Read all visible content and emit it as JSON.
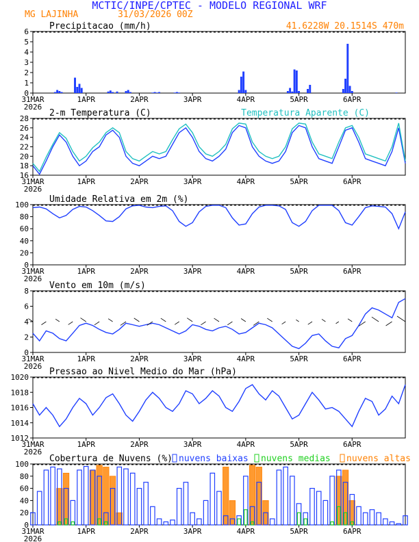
{
  "header": {
    "title": "MCTIC/INPE/CPTEC - MODELO REGIONAL WRF",
    "location": "MG LAJINHA",
    "run": "31/03/2026 00Z",
    "coords": "41.6228W 20.1514S 470m"
  },
  "colors": {
    "blue": "#1f3fff",
    "cyan": "#20c0c0",
    "orange": "#ff8000",
    "green": "#20d020",
    "header_blue": "#2020ff"
  },
  "xaxis": {
    "ticks": [
      {
        "hour": 0,
        "label": "31MAR",
        "year": "2026"
      },
      {
        "hour": 24,
        "label": "1APR"
      },
      {
        "hour": 48,
        "label": "2APR"
      },
      {
        "hour": 72,
        "label": "3APR"
      },
      {
        "hour": 96,
        "label": "4APR"
      },
      {
        "hour": 120,
        "label": "5APR"
      },
      {
        "hour": 144,
        "label": "6APR"
      }
    ],
    "max_hour": 168
  },
  "chart_data": [
    {
      "id": "precip",
      "type": "bar",
      "title": "Precipitacao (mm/h)",
      "ylim": [
        0,
        6
      ],
      "yticks": [
        "0",
        "1",
        "2",
        "3",
        "4",
        "5",
        "6"
      ],
      "color": "#1f3fff",
      "x_hours": [
        10,
        11,
        12,
        13,
        19,
        20,
        21,
        22,
        34,
        35,
        36,
        38,
        42,
        43,
        44,
        54,
        55,
        56,
        57,
        64,
        65,
        66,
        93,
        94,
        95,
        96,
        115,
        116,
        117,
        118,
        119,
        120,
        124,
        125,
        140,
        141,
        142,
        143,
        144,
        164
      ],
      "values": [
        0.1,
        0.3,
        0.2,
        0.1,
        1.5,
        0.6,
        0.9,
        0.5,
        0.15,
        0.25,
        0.1,
        0.15,
        0.2,
        0.3,
        0.1,
        0.05,
        0.1,
        0.05,
        0.1,
        0.05,
        0.1,
        0.05,
        0.3,
        1.6,
        2.1,
        0.3,
        0.2,
        0.5,
        0.15,
        2.3,
        2.2,
        0.2,
        0.4,
        0.8,
        0.4,
        1.4,
        4.8,
        0.7,
        0.2,
        0.05
      ]
    },
    {
      "id": "temp",
      "type": "line",
      "title": "2-m Temperatura (C)",
      "title2": "Temperatura Aparente (C)",
      "ylim": [
        16,
        28
      ],
      "yticks": [
        "16",
        "18",
        "20",
        "22",
        "24",
        "26",
        "28"
      ],
      "x": [
        0,
        3,
        6,
        9,
        12,
        15,
        18,
        21,
        24,
        27,
        30,
        33,
        36,
        39,
        42,
        45,
        48,
        51,
        54,
        57,
        60,
        63,
        66,
        69,
        72,
        75,
        78,
        81,
        84,
        87,
        90,
        93,
        96,
        99,
        102,
        105,
        108,
        111,
        114,
        117,
        120,
        123,
        126,
        129,
        132,
        135,
        138,
        141,
        144,
        147,
        150,
        153,
        156,
        159,
        162,
        165,
        168
      ],
      "series": [
        {
          "name": "2-m Temperatura",
          "color": "#1f3fff",
          "values": [
            18,
            16.2,
            19,
            22,
            24.5,
            23,
            20,
            18,
            19,
            21,
            22,
            24.5,
            25.5,
            24,
            20,
            18.5,
            18,
            19,
            20,
            19.5,
            20,
            22.5,
            25,
            26,
            24,
            21,
            19.5,
            19,
            20,
            21.5,
            25,
            26.5,
            26,
            22,
            20,
            19,
            18.5,
            19,
            21,
            25,
            26.5,
            26,
            22,
            19.5,
            19,
            18.5,
            22,
            25.5,
            26,
            23,
            19.5,
            19,
            18.5,
            18,
            21,
            26,
            18.5
          ]
        },
        {
          "name": "Temperatura Aparente",
          "color": "#20c0c0",
          "values": [
            18.5,
            16.8,
            19.8,
            22.5,
            25,
            23.8,
            21,
            19,
            20,
            21.8,
            23,
            25,
            26,
            25,
            21,
            19.5,
            19,
            20,
            21,
            20.5,
            21,
            23.5,
            25.8,
            26.8,
            25,
            22,
            20.5,
            20,
            21,
            22.5,
            25.8,
            27,
            26.8,
            23,
            21,
            20,
            19.5,
            20,
            22,
            25.8,
            27,
            26.8,
            23,
            20.5,
            20,
            19.5,
            23,
            26,
            26.5,
            24,
            20.5,
            20,
            19.5,
            19,
            22,
            27,
            19
          ]
        }
      ]
    },
    {
      "id": "rh",
      "type": "line",
      "title": "Umidade Relativa em 2m (%)",
      "ylim": [
        0,
        100
      ],
      "yticks": [
        "0",
        "20",
        "40",
        "60",
        "80",
        "100"
      ],
      "x": [
        0,
        3,
        6,
        9,
        12,
        15,
        18,
        21,
        24,
        27,
        30,
        33,
        36,
        39,
        42,
        45,
        48,
        51,
        54,
        57,
        60,
        63,
        66,
        69,
        72,
        75,
        78,
        81,
        84,
        87,
        90,
        93,
        96,
        99,
        102,
        105,
        108,
        111,
        114,
        117,
        120,
        123,
        126,
        129,
        132,
        135,
        138,
        141,
        144,
        147,
        150,
        153,
        156,
        159,
        162,
        165,
        168
      ],
      "series": [
        {
          "name": "Umidade Relativa",
          "color": "#1f3fff",
          "values": [
            95,
            96,
            93,
            85,
            78,
            82,
            92,
            97,
            96,
            90,
            82,
            73,
            72,
            80,
            93,
            98,
            99,
            96,
            95,
            97,
            98,
            90,
            72,
            64,
            70,
            88,
            97,
            99,
            99,
            95,
            78,
            66,
            68,
            85,
            96,
            99,
            99,
            98,
            92,
            70,
            64,
            72,
            90,
            99,
            99,
            99,
            90,
            70,
            66,
            80,
            95,
            98,
            97,
            96,
            85,
            60,
            88
          ]
        }
      ]
    },
    {
      "id": "wind",
      "type": "line",
      "title": "Vento em 10m (m/s)",
      "ylim": [
        0,
        8
      ],
      "yticks": [
        "0",
        "2",
        "4",
        "6",
        "8"
      ],
      "x": [
        0,
        3,
        6,
        9,
        12,
        15,
        18,
        21,
        24,
        27,
        30,
        33,
        36,
        39,
        42,
        45,
        48,
        51,
        54,
        57,
        60,
        63,
        66,
        69,
        72,
        75,
        78,
        81,
        84,
        87,
        90,
        93,
        96,
        99,
        102,
        105,
        108,
        111,
        114,
        117,
        120,
        123,
        126,
        129,
        132,
        135,
        138,
        141,
        144,
        147,
        150,
        153,
        156,
        159,
        162,
        165,
        168
      ],
      "series": [
        {
          "name": "Vento",
          "color": "#1f3fff",
          "values": [
            2.5,
            1.5,
            2.8,
            2.5,
            1.8,
            1.5,
            2.5,
            3.5,
            3.8,
            3.5,
            3.0,
            2.6,
            2.4,
            3.0,
            3.8,
            3.6,
            3.4,
            3.6,
            3.8,
            3.6,
            3.2,
            2.8,
            2.4,
            2.8,
            3.6,
            3.4,
            3.0,
            2.8,
            3.2,
            3.4,
            3.0,
            2.4,
            2.6,
            3.2,
            3.8,
            3.6,
            3.2,
            2.4,
            1.6,
            0.8,
            0.5,
            1.2,
            2.2,
            2.4,
            1.5,
            0.8,
            0.6,
            1.8,
            2.2,
            3.5,
            5.0,
            5.8,
            5.5,
            5.0,
            4.5,
            6.5,
            7.0
          ]
        }
      ]
    },
    {
      "id": "press",
      "type": "line",
      "title": "Pressao ao Nivel Medio do Mar (hPa)",
      "ylim": [
        1012,
        1020
      ],
      "yticks": [
        "1012",
        "1014",
        "1016",
        "1018",
        "1020"
      ],
      "x": [
        0,
        3,
        6,
        9,
        12,
        15,
        18,
        21,
        24,
        27,
        30,
        33,
        36,
        39,
        42,
        45,
        48,
        51,
        54,
        57,
        60,
        63,
        66,
        69,
        72,
        75,
        78,
        81,
        84,
        87,
        90,
        93,
        96,
        99,
        102,
        105,
        108,
        111,
        114,
        117,
        120,
        123,
        126,
        129,
        132,
        135,
        138,
        141,
        144,
        147,
        150,
        153,
        156,
        159,
        162,
        165,
        168
      ],
      "series": [
        {
          "name": "Pressao",
          "color": "#1f3fff",
          "values": [
            1016.5,
            1015,
            1016,
            1015,
            1013.5,
            1014.5,
            1016,
            1017.2,
            1016.5,
            1015,
            1016,
            1017.3,
            1017.8,
            1016.5,
            1015,
            1014.2,
            1015.5,
            1017,
            1018,
            1017.2,
            1016,
            1015.5,
            1016.5,
            1018.2,
            1017.8,
            1016.5,
            1017.2,
            1018.2,
            1017.5,
            1016,
            1015.5,
            1016.8,
            1018.5,
            1019,
            1017.8,
            1017,
            1018.2,
            1017.5,
            1016,
            1014.5,
            1015,
            1016.5,
            1018,
            1017,
            1015.8,
            1016,
            1015.5,
            1014.5,
            1013.5,
            1015.5,
            1017.2,
            1016.8,
            1015,
            1015.8,
            1017.5,
            1016.5,
            1019
          ]
        }
      ]
    },
    {
      "id": "clouds",
      "type": "bar",
      "title": "Cobertura de Nuvens (%)",
      "legend": [
        "nuvens baixas",
        "nuvens medias",
        "nuvens altas"
      ],
      "ylim": [
        0,
        100
      ],
      "yticks": [
        "0",
        "20",
        "40",
        "60",
        "80",
        "100"
      ],
      "x": [
        0,
        3,
        6,
        9,
        12,
        15,
        18,
        21,
        24,
        27,
        30,
        33,
        36,
        39,
        42,
        45,
        48,
        51,
        54,
        57,
        60,
        63,
        66,
        69,
        72,
        75,
        78,
        81,
        84,
        87,
        90,
        93,
        96,
        99,
        102,
        105,
        108,
        111,
        114,
        117,
        120,
        123,
        126,
        129,
        132,
        135,
        138,
        141,
        144,
        147,
        150,
        153,
        156,
        159,
        162,
        165,
        168
      ],
      "series": [
        {
          "name": "nuvens baixas",
          "color": "#1f3fff",
          "values": [
            20,
            55,
            90,
            95,
            92,
            60,
            40,
            90,
            96,
            90,
            80,
            20,
            60,
            95,
            92,
            85,
            60,
            70,
            30,
            10,
            5,
            8,
            60,
            70,
            20,
            10,
            40,
            85,
            55,
            15,
            10,
            15,
            80,
            30,
            70,
            20,
            10,
            90,
            95,
            80,
            35,
            20,
            60,
            55,
            40,
            80,
            90,
            70,
            50,
            30,
            20,
            25,
            20,
            10,
            5,
            2,
            15
          ]
        },
        {
          "name": "nuvens medias",
          "color": "#20d020",
          "values": [
            0,
            0,
            0,
            0,
            5,
            10,
            5,
            0,
            0,
            0,
            10,
            5,
            0,
            0,
            0,
            0,
            0,
            0,
            0,
            0,
            0,
            0,
            0,
            0,
            0,
            0,
            0,
            0,
            0,
            0,
            0,
            10,
            25,
            5,
            0,
            0,
            0,
            0,
            0,
            0,
            20,
            10,
            0,
            0,
            0,
            5,
            30,
            20,
            5,
            0,
            0,
            0,
            0,
            0,
            0,
            0,
            0
          ]
        },
        {
          "name": "nuvens altas",
          "color": "#ff8000",
          "values": [
            0,
            0,
            0,
            0,
            60,
            85,
            0,
            0,
            0,
            90,
            98,
            95,
            80,
            20,
            0,
            0,
            0,
            0,
            0,
            0,
            0,
            0,
            0,
            0,
            0,
            0,
            0,
            0,
            0,
            95,
            40,
            0,
            0,
            98,
            95,
            40,
            0,
            0,
            0,
            0,
            0,
            0,
            0,
            0,
            0,
            0,
            80,
            90,
            40,
            0,
            0,
            0,
            0,
            0,
            0,
            0,
            0
          ]
        }
      ]
    }
  ]
}
